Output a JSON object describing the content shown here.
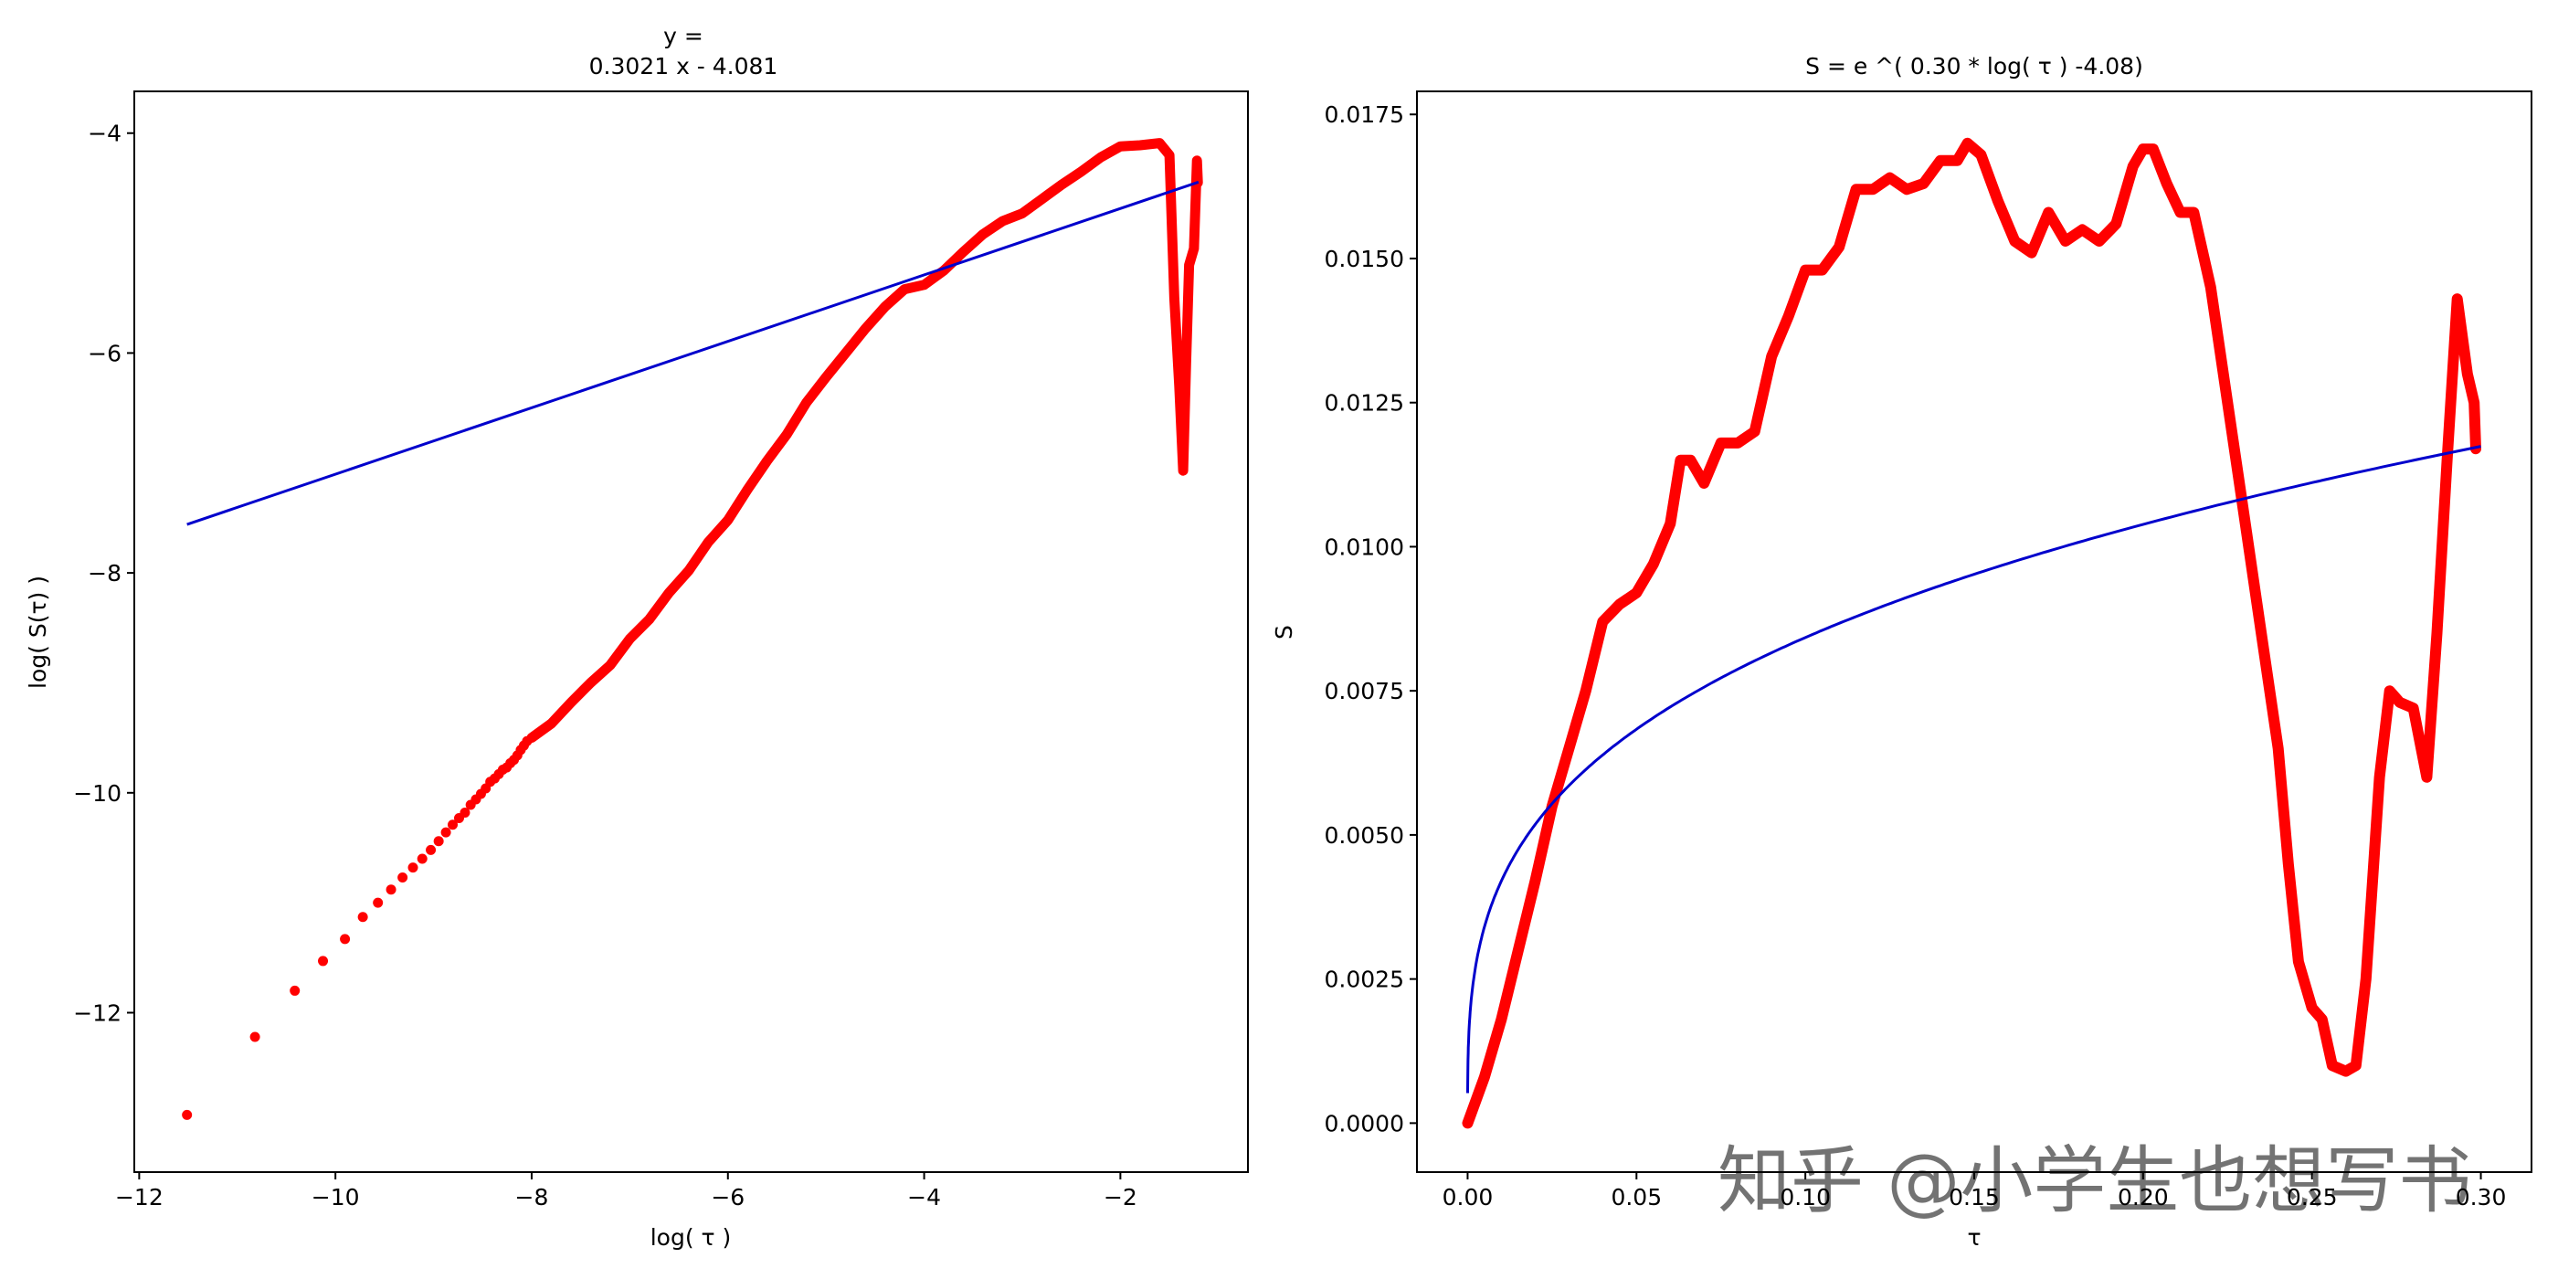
{
  "chart_data": [
    {
      "type": "scatter",
      "title": "y = \n0.3021 x - 4.081",
      "title_lines": [
        "y =",
        "0.3021 x - 4.081"
      ],
      "xlabel": "log( τ )",
      "ylabel": "log( S(τ) )",
      "xlim": [
        -12.05,
        -0.7
      ],
      "ylim": [
        -13.45,
        -3.62
      ],
      "xticks": [
        -12,
        -10,
        -8,
        -6,
        -4,
        -2
      ],
      "xtick_labels": [
        "−12",
        "−10",
        "−8",
        "−6",
        "−4",
        "−2"
      ],
      "yticks": [
        -12,
        -10,
        -8,
        -6,
        -4
      ],
      "ytick_labels": [
        "−12",
        "−10",
        "−8",
        "−6",
        "−4"
      ],
      "grid": false,
      "series": [
        {
          "kind": "scatter",
          "color": "#ff0000",
          "points": [
            [
              -11.513,
              -12.93
            ],
            [
              -10.82,
              -12.22
            ],
            [
              -10.414,
              -11.8
            ],
            [
              -10.127,
              -11.53
            ],
            [
              -9.903,
              -11.33
            ],
            [
              -9.721,
              -11.13
            ],
            [
              -9.567,
              -11.0
            ],
            [
              -9.433,
              -10.88
            ],
            [
              -9.316,
              -10.77
            ],
            [
              -9.21,
              -10.68
            ],
            [
              -9.115,
              -10.6
            ],
            [
              -9.028,
              -10.52
            ],
            [
              -8.948,
              -10.44
            ],
            [
              -8.874,
              -10.36
            ],
            [
              -8.805,
              -10.29
            ],
            [
              -8.74,
              -10.23
            ],
            [
              -8.68,
              -10.18
            ],
            [
              -8.622,
              -10.11
            ],
            [
              -8.568,
              -10.06
            ],
            [
              -8.517,
              -10.01
            ],
            [
              -8.468,
              -9.96
            ],
            [
              -8.422,
              -9.9
            ],
            [
              -8.377,
              -9.87
            ],
            [
              -8.335,
              -9.83
            ],
            [
              -8.294,
              -9.79
            ],
            [
              -8.255,
              -9.77
            ],
            [
              -8.217,
              -9.73
            ],
            [
              -8.181,
              -9.7
            ],
            [
              -8.146,
              -9.66
            ],
            [
              -8.112,
              -9.61
            ],
            [
              -8.079,
              -9.57
            ],
            [
              -8.047,
              -9.53
            ]
          ],
          "dense_path": [
            [
              -8.0,
              -9.5
            ],
            [
              -7.8,
              -9.37
            ],
            [
              -7.6,
              -9.18
            ],
            [
              -7.4,
              -9.0
            ],
            [
              -7.2,
              -8.84
            ],
            [
              -7.0,
              -8.6
            ],
            [
              -6.8,
              -8.42
            ],
            [
              -6.6,
              -8.18
            ],
            [
              -6.4,
              -7.98
            ],
            [
              -6.2,
              -7.72
            ],
            [
              -6.0,
              -7.52
            ],
            [
              -5.8,
              -7.24
            ],
            [
              -5.6,
              -6.98
            ],
            [
              -5.4,
              -6.74
            ],
            [
              -5.2,
              -6.45
            ],
            [
              -5.0,
              -6.22
            ],
            [
              -4.8,
              -6.0
            ],
            [
              -4.6,
              -5.78
            ],
            [
              -4.4,
              -5.58
            ],
            [
              -4.2,
              -5.42
            ],
            [
              -4.0,
              -5.38
            ],
            [
              -3.8,
              -5.25
            ],
            [
              -3.6,
              -5.08
            ],
            [
              -3.4,
              -4.92
            ],
            [
              -3.2,
              -4.8
            ],
            [
              -3.0,
              -4.73
            ],
            [
              -2.8,
              -4.6
            ],
            [
              -2.6,
              -4.47
            ],
            [
              -2.4,
              -4.35
            ],
            [
              -2.2,
              -4.22
            ],
            [
              -2.0,
              -4.12
            ],
            [
              -1.8,
              -4.11
            ],
            [
              -1.6,
              -4.09
            ],
            [
              -1.5,
              -4.2
            ],
            [
              -1.45,
              -5.5
            ],
            [
              -1.4,
              -6.3
            ],
            [
              -1.36,
              -7.07
            ],
            [
              -1.33,
              -6.1
            ],
            [
              -1.3,
              -5.2
            ],
            [
              -1.25,
              -5.05
            ],
            [
              -1.22,
              -4.25
            ],
            [
              -1.21,
              -4.45
            ]
          ]
        },
        {
          "kind": "line",
          "color": "#0000cc",
          "points": [
            [
              -11.513,
              -7.559
            ],
            [
              -1.204,
              -4.445
            ]
          ]
        }
      ]
    },
    {
      "type": "line",
      "title": "S = e ^( 0.30 * log( τ )  -4.08)",
      "xlabel": "τ",
      "ylabel": "S",
      "xlim": [
        -0.015,
        0.315
      ],
      "ylim": [
        -0.00085,
        0.0179
      ],
      "xticks": [
        0.0,
        0.05,
        0.1,
        0.15,
        0.2,
        0.25,
        0.3
      ],
      "xtick_labels": [
        "0.00",
        "0.05",
        "0.10",
        "0.15",
        "0.20",
        "0.25",
        "0.30"
      ],
      "yticks": [
        0.0,
        0.0025,
        0.005,
        0.0075,
        0.01,
        0.0125,
        0.015,
        0.0175
      ],
      "ytick_labels": [
        "0.0000",
        "0.0025",
        "0.0050",
        "0.0075",
        "0.0100",
        "0.0125",
        "0.0150",
        "0.0175"
      ],
      "grid": false,
      "series": [
        {
          "kind": "thick-line",
          "color": "#ff0000",
          "points": [
            [
              0.0,
              0.0
            ],
            [
              0.005,
              0.0008
            ],
            [
              0.01,
              0.0018
            ],
            [
              0.015,
              0.003
            ],
            [
              0.02,
              0.0042
            ],
            [
              0.025,
              0.0055
            ],
            [
              0.03,
              0.0065
            ],
            [
              0.035,
              0.0075
            ],
            [
              0.04,
              0.0087
            ],
            [
              0.045,
              0.009
            ],
            [
              0.05,
              0.0092
            ],
            [
              0.055,
              0.0097
            ],
            [
              0.06,
              0.0104
            ],
            [
              0.063,
              0.0115
            ],
            [
              0.066,
              0.0115
            ],
            [
              0.07,
              0.0111
            ],
            [
              0.075,
              0.0118
            ],
            [
              0.08,
              0.0118
            ],
            [
              0.085,
              0.012
            ],
            [
              0.09,
              0.0133
            ],
            [
              0.095,
              0.014
            ],
            [
              0.1,
              0.0148
            ],
            [
              0.105,
              0.0148
            ],
            [
              0.11,
              0.0152
            ],
            [
              0.115,
              0.0162
            ],
            [
              0.12,
              0.0162
            ],
            [
              0.125,
              0.0164
            ],
            [
              0.13,
              0.0162
            ],
            [
              0.135,
              0.0163
            ],
            [
              0.14,
              0.0167
            ],
            [
              0.145,
              0.0167
            ],
            [
              0.148,
              0.017
            ],
            [
              0.152,
              0.0168
            ],
            [
              0.157,
              0.016
            ],
            [
              0.162,
              0.0153
            ],
            [
              0.167,
              0.0151
            ],
            [
              0.172,
              0.0158
            ],
            [
              0.177,
              0.0153
            ],
            [
              0.182,
              0.0155
            ],
            [
              0.187,
              0.0153
            ],
            [
              0.192,
              0.0156
            ],
            [
              0.197,
              0.0166
            ],
            [
              0.2,
              0.0169
            ],
            [
              0.203,
              0.0169
            ],
            [
              0.207,
              0.0163
            ],
            [
              0.211,
              0.0158
            ],
            [
              0.215,
              0.0158
            ],
            [
              0.22,
              0.0145
            ],
            [
              0.225,
              0.0125
            ],
            [
              0.23,
              0.0105
            ],
            [
              0.235,
              0.0085
            ],
            [
              0.24,
              0.0065
            ],
            [
              0.243,
              0.0045
            ],
            [
              0.246,
              0.0028
            ],
            [
              0.25,
              0.002
            ],
            [
              0.253,
              0.0018
            ],
            [
              0.256,
              0.001
            ],
            [
              0.26,
              0.0009
            ],
            [
              0.263,
              0.001
            ],
            [
              0.266,
              0.0025
            ],
            [
              0.27,
              0.006
            ],
            [
              0.273,
              0.0075
            ],
            [
              0.276,
              0.0073
            ],
            [
              0.28,
              0.0072
            ],
            [
              0.284,
              0.006
            ],
            [
              0.287,
              0.0085
            ],
            [
              0.29,
              0.0115
            ],
            [
              0.293,
              0.0143
            ],
            [
              0.296,
              0.013
            ],
            [
              0.298,
              0.0125
            ],
            [
              0.2985,
              0.0117
            ]
          ]
        },
        {
          "kind": "line",
          "color": "#0000cc",
          "function": "S = exp(0.3021 * ln(τ) - 4.081)",
          "x_range": [
            1e-05,
            0.3
          ]
        }
      ]
    }
  ],
  "watermark": {
    "text": "知乎 @小学生也想写书"
  }
}
